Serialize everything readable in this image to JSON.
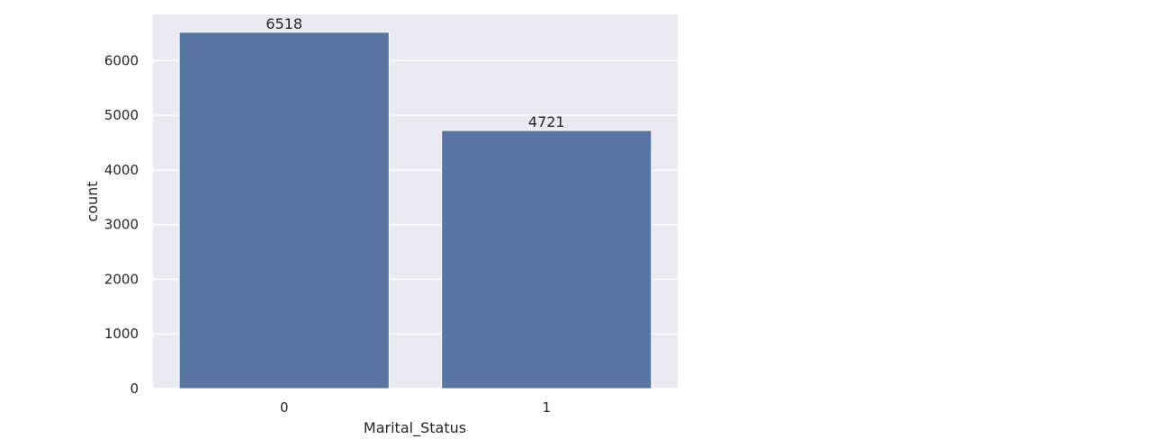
{
  "chart_data": {
    "type": "bar",
    "categories": [
      "0",
      "1"
    ],
    "values": [
      6518,
      4721
    ],
    "data_labels": [
      "6518",
      "4721"
    ],
    "title": "",
    "xlabel": "Marital_Status",
    "ylabel": "count",
    "ylim": [
      0,
      6844
    ],
    "yticks": [
      0,
      1000,
      2000,
      3000,
      4000,
      5000,
      6000
    ],
    "ytick_labels": [
      "0",
      "1000",
      "2000",
      "3000",
      "4000",
      "5000",
      "6000"
    ],
    "grid": true,
    "legend": "none",
    "colors": {
      "bar": "#5975a4",
      "background": "#eaeaf2",
      "grid": "#ffffff",
      "text": "#262626"
    }
  }
}
